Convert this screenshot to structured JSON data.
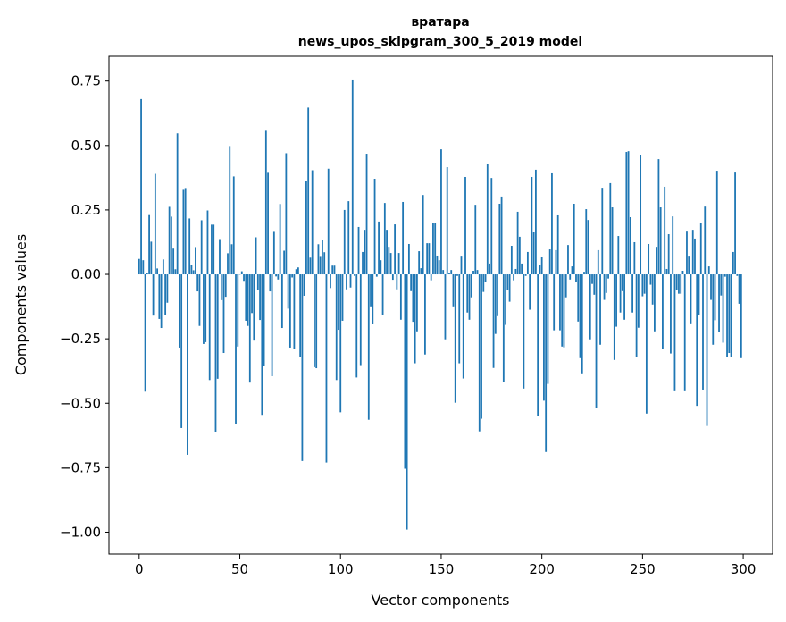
{
  "chart_data": {
    "type": "bar",
    "title_lines": [
      "вратара",
      "news_upos_skipgram_300_5_2019 model"
    ],
    "xlabel": "Vector components",
    "ylabel": "Components values",
    "xlim": [
      -15,
      314.6
    ],
    "ylim": [
      -1.085,
      0.846
    ],
    "xticks": [
      0,
      50,
      100,
      150,
      200,
      250,
      300
    ],
    "xtick_labels": [
      "0",
      "50",
      "100",
      "150",
      "200",
      "250",
      "300"
    ],
    "yticks": [
      0.75,
      0.5,
      0.25,
      0,
      -0.25,
      -0.5,
      -0.75,
      -1.0
    ],
    "ytick_labels": [
      "0.75",
      "0.50",
      "0.25",
      "0.00",
      "−0.25",
      "−0.50",
      "−0.75",
      "−1.00"
    ],
    "grid": false,
    "bar_color": "#1f77b4",
    "values": [
      0.06,
      0.68,
      0.055,
      -0.455,
      0.005,
      0.23,
      0.127,
      -0.16,
      0.39,
      0.023,
      -0.173,
      -0.208,
      0.058,
      -0.156,
      -0.11,
      0.262,
      0.224,
      0.1,
      0.02,
      0.547,
      -0.284,
      -0.596,
      0.328,
      0.335,
      -0.7,
      0.217,
      0.037,
      0.016,
      0.106,
      -0.066,
      -0.2,
      0.21,
      -0.27,
      -0.263,
      0.248,
      -0.41,
      0.193,
      0.193,
      -0.61,
      -0.405,
      0.137,
      -0.1,
      -0.305,
      -0.087,
      0.082,
      0.498,
      0.117,
      0.38,
      -0.58,
      -0.28,
      0.0,
      0.012,
      -0.025,
      -0.18,
      -0.2,
      -0.42,
      -0.15,
      -0.257,
      0.144,
      -0.062,
      -0.177,
      -0.545,
      -0.354,
      0.557,
      0.394,
      -0.066,
      -0.395,
      0.165,
      -0.008,
      -0.02,
      0.273,
      -0.208,
      0.092,
      0.47,
      -0.133,
      -0.284,
      -0.012,
      -0.291,
      0.02,
      0.027,
      -0.322,
      -0.724,
      -0.083,
      0.363,
      0.647,
      0.065,
      0.404,
      -0.36,
      -0.364,
      0.117,
      0.068,
      0.134,
      0.086,
      -0.73,
      0.41,
      -0.053,
      0.034,
      0.034,
      -0.41,
      -0.215,
      -0.535,
      -0.18,
      0.25,
      -0.058,
      0.284,
      -0.051,
      0.756,
      -0.006,
      -0.4,
      0.184,
      -0.352,
      0.087,
      0.173,
      0.468,
      -0.564,
      -0.124,
      -0.193,
      0.371,
      -0.009,
      0.205,
      0.055,
      -0.158,
      0.277,
      0.173,
      0.107,
      0.083,
      -0.021,
      0.194,
      -0.058,
      0.083,
      -0.176,
      0.281,
      -0.754,
      -0.99,
      0.118,
      -0.065,
      -0.184,
      -0.345,
      -0.221,
      0.09,
      0.024,
      0.308,
      -0.311,
      0.121,
      0.121,
      -0.023,
      0.198,
      0.201,
      0.073,
      0.055,
      0.485,
      0.017,
      -0.252,
      0.416,
      0.007,
      0.017,
      -0.124,
      -0.498,
      -0.006,
      -0.345,
      0.069,
      -0.404,
      0.378,
      -0.148,
      -0.176,
      -0.089,
      0.014,
      0.27,
      0.017,
      -0.609,
      -0.56,
      -0.068,
      -0.03,
      0.43,
      0.042,
      0.374,
      -0.363,
      -0.231,
      -0.162,
      0.274,
      0.302,
      -0.418,
      -0.196,
      -0.061,
      -0.106,
      0.111,
      -0.023,
      0.021,
      0.243,
      0.146,
      0.042,
      -0.443,
      -0.006,
      0.087,
      -0.137,
      0.378,
      0.163,
      0.406,
      -0.55,
      0.038,
      0.066,
      -0.49,
      -0.689,
      -0.425,
      0.097,
      0.392,
      -0.217,
      0.094,
      0.229,
      -0.217,
      -0.28,
      -0.283,
      -0.089,
      0.114,
      -0.02,
      0.031,
      0.274,
      -0.03,
      -0.183,
      -0.325,
      -0.384,
      0.01,
      0.253,
      0.211,
      -0.252,
      -0.037,
      -0.079,
      -0.519,
      0.094,
      -0.273,
      0.336,
      -0.099,
      -0.072,
      -0.016,
      0.354,
      0.26,
      -0.332,
      -0.203,
      0.149,
      -0.148,
      -0.065,
      -0.176,
      0.475,
      0.478,
      0.222,
      -0.148,
      0.125,
      -0.321,
      -0.207,
      0.464,
      -0.085,
      -0.075,
      -0.54,
      0.118,
      -0.04,
      -0.117,
      -0.221,
      0.107,
      0.447,
      0.26,
      -0.29,
      0.34,
      0.021,
      0.156,
      -0.307,
      0.225,
      -0.45,
      -0.061,
      -0.075,
      -0.075,
      0.014,
      -0.45,
      0.166,
      0.069,
      -0.19,
      0.173,
      0.139,
      -0.51,
      -0.158,
      0.201,
      -0.447,
      0.263,
      -0.588,
      0.031,
      -0.099,
      -0.273,
      -0.178,
      0.402,
      -0.222,
      -0.082,
      -0.265,
      -0.009,
      -0.321,
      -0.305,
      -0.321,
      0.087,
      0.395,
      -0.006,
      -0.114,
      -0.325
    ]
  }
}
